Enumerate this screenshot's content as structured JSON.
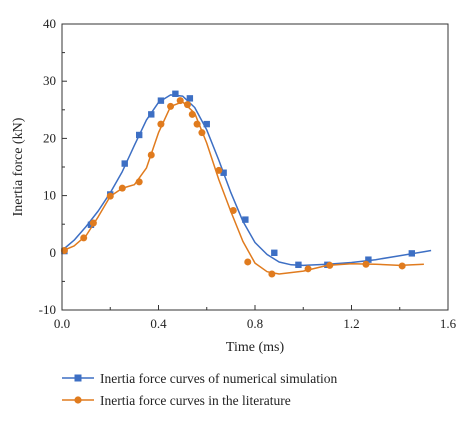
{
  "chart_data": {
    "type": "line",
    "title": "",
    "xlabel": "Time (ms)",
    "ylabel": "Inertia force (kN)",
    "xlim": [
      0.0,
      1.6
    ],
    "ylim": [
      -10,
      40
    ],
    "x_ticks": [
      0.0,
      0.4,
      0.8,
      1.2,
      1.6
    ],
    "x_tick_labels": [
      "0.0",
      "0.4",
      "0.8",
      "1.2",
      "1.6"
    ],
    "y_ticks": [
      -10,
      0,
      10,
      20,
      30,
      40
    ],
    "y_tick_labels": [
      "-10",
      "0",
      "10",
      "20",
      "30",
      "40"
    ],
    "grid": false,
    "legend_position": "bottom",
    "series": [
      {
        "name": "Inertia force curves of numerical simulation",
        "color": "#3d6fc4",
        "marker": "square",
        "line": [
          [
            0.0,
            0.4
          ],
          [
            0.05,
            2.2
          ],
          [
            0.1,
            4.6
          ],
          [
            0.15,
            7.3
          ],
          [
            0.2,
            10.5
          ],
          [
            0.25,
            14.2
          ],
          [
            0.3,
            18.8
          ],
          [
            0.35,
            23.2
          ],
          [
            0.4,
            26.3
          ],
          [
            0.45,
            27.6
          ],
          [
            0.5,
            27.4
          ],
          [
            0.55,
            25.4
          ],
          [
            0.6,
            21.5
          ],
          [
            0.65,
            16.2
          ],
          [
            0.7,
            10.5
          ],
          [
            0.75,
            5.5
          ],
          [
            0.8,
            1.8
          ],
          [
            0.85,
            -0.3
          ],
          [
            0.9,
            -1.6
          ],
          [
            0.95,
            -2.1
          ],
          [
            1.0,
            -2.2
          ],
          [
            1.1,
            -2.0
          ],
          [
            1.2,
            -1.7
          ],
          [
            1.3,
            -1.2
          ],
          [
            1.4,
            -0.5
          ],
          [
            1.5,
            0.2
          ],
          [
            1.53,
            0.4
          ]
        ],
        "markers": [
          [
            0.01,
            0.3
          ],
          [
            0.12,
            4.9
          ],
          [
            0.2,
            10.2
          ],
          [
            0.26,
            15.6
          ],
          [
            0.32,
            20.6
          ],
          [
            0.37,
            24.2
          ],
          [
            0.41,
            26.6
          ],
          [
            0.47,
            27.8
          ],
          [
            0.53,
            27.0
          ],
          [
            0.6,
            22.5
          ],
          [
            0.67,
            14.0
          ],
          [
            0.76,
            5.8
          ],
          [
            0.88,
            0.0
          ],
          [
            0.98,
            -2.1
          ],
          [
            1.1,
            -2.1
          ],
          [
            1.27,
            -1.2
          ],
          [
            1.45,
            -0.1
          ]
        ]
      },
      {
        "name": "Inertia force curves in the literature",
        "color": "#e07b1e",
        "marker": "circle",
        "line": [
          [
            0.0,
            0.3
          ],
          [
            0.05,
            1.2
          ],
          [
            0.1,
            3.0
          ],
          [
            0.15,
            6.3
          ],
          [
            0.2,
            9.9
          ],
          [
            0.25,
            11.3
          ],
          [
            0.3,
            11.9
          ],
          [
            0.35,
            14.8
          ],
          [
            0.4,
            21.0
          ],
          [
            0.45,
            25.6
          ],
          [
            0.5,
            26.4
          ],
          [
            0.55,
            24.4
          ],
          [
            0.6,
            19.2
          ],
          [
            0.65,
            12.8
          ],
          [
            0.7,
            7.2
          ],
          [
            0.75,
            2.0
          ],
          [
            0.8,
            -1.8
          ],
          [
            0.85,
            -3.3
          ],
          [
            0.9,
            -3.7
          ],
          [
            1.0,
            -3.2
          ],
          [
            1.1,
            -2.2
          ],
          [
            1.2,
            -1.9
          ],
          [
            1.3,
            -2.0
          ],
          [
            1.4,
            -2.2
          ],
          [
            1.5,
            -2.0
          ]
        ],
        "markers": [
          [
            0.01,
            0.4
          ],
          [
            0.09,
            2.6
          ],
          [
            0.13,
            5.2
          ],
          [
            0.2,
            9.9
          ],
          [
            0.25,
            11.3
          ],
          [
            0.32,
            12.4
          ],
          [
            0.37,
            17.1
          ],
          [
            0.41,
            22.5
          ],
          [
            0.45,
            25.6
          ],
          [
            0.49,
            26.6
          ],
          [
            0.52,
            25.9
          ],
          [
            0.54,
            24.2
          ],
          [
            0.56,
            22.5
          ],
          [
            0.58,
            21.0
          ],
          [
            0.65,
            14.4
          ],
          [
            0.71,
            7.4
          ],
          [
            0.77,
            -1.6
          ],
          [
            0.87,
            -3.7
          ],
          [
            1.02,
            -2.8
          ],
          [
            1.11,
            -2.2
          ],
          [
            1.26,
            -2.0
          ],
          [
            1.41,
            -2.3
          ]
        ]
      }
    ]
  }
}
